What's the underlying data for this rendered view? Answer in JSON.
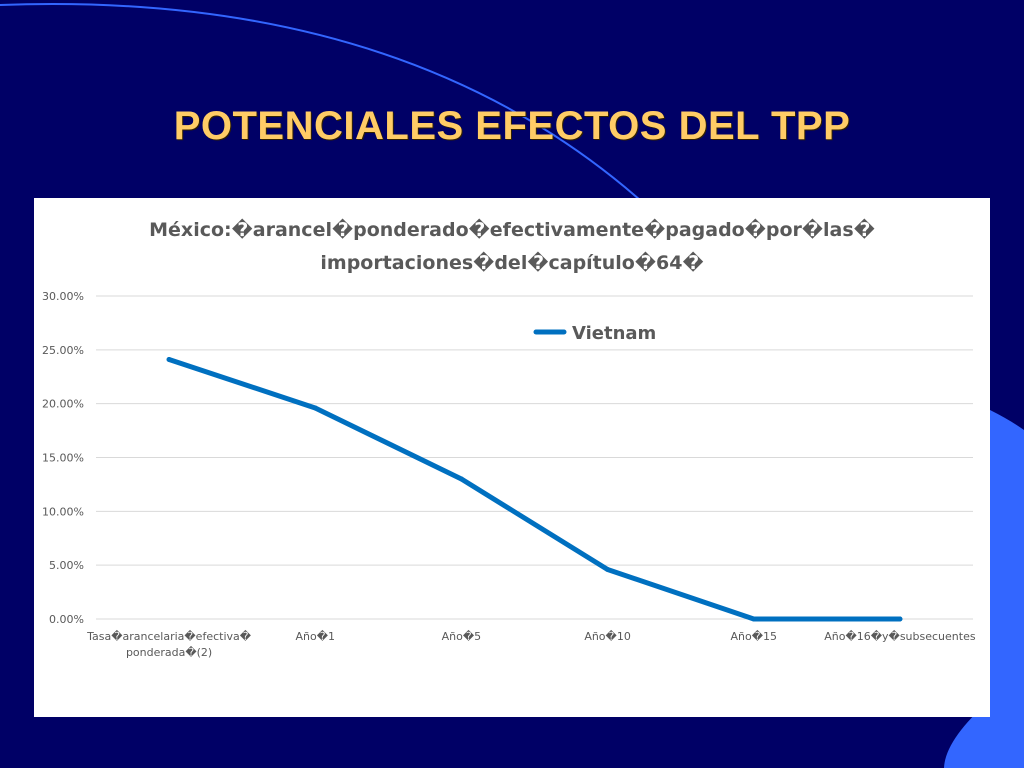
{
  "slide": {
    "title": "POTENCIALES EFECTOS DEL TPP",
    "background": "#000066",
    "title_color": "#FFCC66",
    "accent": "#3366FF"
  },
  "chart_data": {
    "type": "line",
    "title_lines": [
      "México:�arancel�ponderado�efectivamente�pagado�por�las�",
      "importaciones�del�capítulo�64�"
    ],
    "categories": [
      [
        "Tasa�arancelaria�efectiva�",
        "ponderada�(2)"
      ],
      [
        "Año�1"
      ],
      [
        "Año�5"
      ],
      [
        "Año�10"
      ],
      [
        "Año�15"
      ],
      [
        "Año�16�y�subsecuentes"
      ]
    ],
    "series": [
      {
        "name": "Vietnam",
        "color": "#0070C0",
        "values": [
          0.241,
          0.196,
          0.13,
          0.046,
          0.0,
          0.0
        ]
      }
    ],
    "ylim": [
      0,
      0.3
    ],
    "yticks": [
      0,
      0.05,
      0.1,
      0.15,
      0.2,
      0.25,
      0.3
    ],
    "ytick_labels": [
      "0.00%",
      "5.00%",
      "10.00%",
      "15.00%",
      "20.00%",
      "25.00%",
      "30.00%"
    ],
    "grid": true,
    "legend_position": "top-center"
  }
}
